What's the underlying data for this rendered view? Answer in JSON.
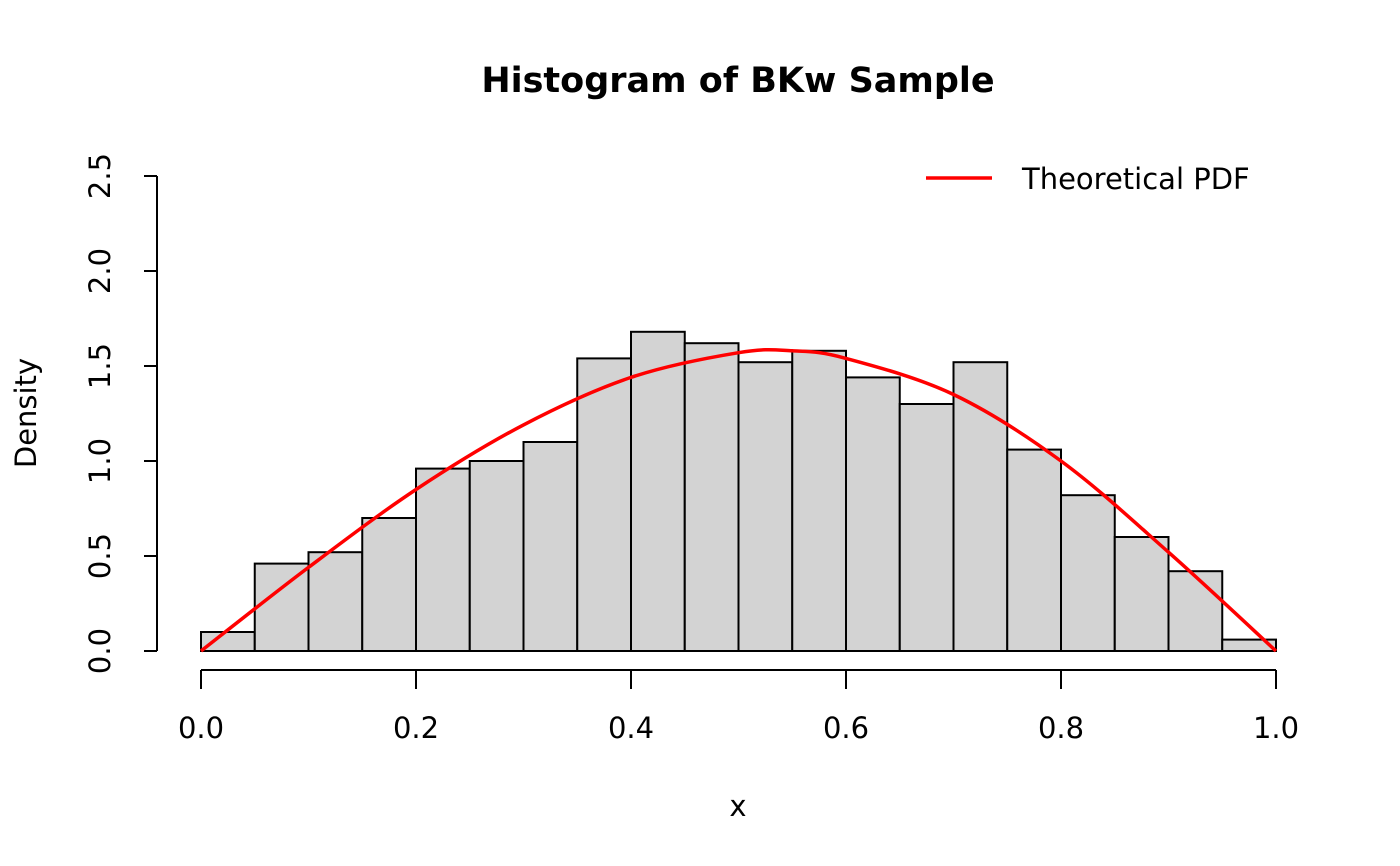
{
  "chart_data": {
    "type": "bar",
    "title": "Histogram of BKw Sample",
    "xlabel": "x",
    "ylabel": "Density",
    "xlim": [
      0,
      1
    ],
    "ylim": [
      0,
      2.5
    ],
    "x_ticks": [
      "0.0",
      "0.2",
      "0.4",
      "0.6",
      "0.8",
      "1.0"
    ],
    "y_ticks": [
      "0.0",
      "0.5",
      "1.0",
      "1.5",
      "2.0",
      "2.5"
    ],
    "bins": [
      {
        "start": 0.0,
        "end": 0.05,
        "density": 0.1
      },
      {
        "start": 0.05,
        "end": 0.1,
        "density": 0.46
      },
      {
        "start": 0.1,
        "end": 0.15,
        "density": 0.52
      },
      {
        "start": 0.15,
        "end": 0.2,
        "density": 0.7
      },
      {
        "start": 0.2,
        "end": 0.25,
        "density": 0.96
      },
      {
        "start": 0.25,
        "end": 0.3,
        "density": 1.0
      },
      {
        "start": 0.3,
        "end": 0.35,
        "density": 1.1
      },
      {
        "start": 0.35,
        "end": 0.4,
        "density": 1.54
      },
      {
        "start": 0.4,
        "end": 0.45,
        "density": 1.68
      },
      {
        "start": 0.45,
        "end": 0.5,
        "density": 1.62
      },
      {
        "start": 0.5,
        "end": 0.55,
        "density": 1.52
      },
      {
        "start": 0.55,
        "end": 0.6,
        "density": 1.58
      },
      {
        "start": 0.6,
        "end": 0.65,
        "density": 1.44
      },
      {
        "start": 0.65,
        "end": 0.7,
        "density": 1.3
      },
      {
        "start": 0.7,
        "end": 0.75,
        "density": 1.52
      },
      {
        "start": 0.75,
        "end": 0.8,
        "density": 1.06
      },
      {
        "start": 0.8,
        "end": 0.85,
        "density": 0.82
      },
      {
        "start": 0.85,
        "end": 0.9,
        "density": 0.6
      },
      {
        "start": 0.9,
        "end": 0.95,
        "density": 0.42
      },
      {
        "start": 0.95,
        "end": 1.0,
        "density": 0.06
      }
    ],
    "series": [
      {
        "name": "Theoretical PDF",
        "type": "line",
        "color": "#ff0000",
        "x": [
          0.0,
          0.1,
          0.2,
          0.3,
          0.4,
          0.5,
          0.55,
          0.6,
          0.7,
          0.8,
          0.9,
          1.0
        ],
        "y": [
          0.0,
          0.44,
          0.85,
          1.19,
          1.44,
          1.57,
          1.58,
          1.54,
          1.35,
          1.0,
          0.52,
          0.0
        ]
      }
    ],
    "bar_fill": "#d3d3d3",
    "legend": {
      "position": "top-right",
      "entries": [
        "Theoretical PDF"
      ]
    },
    "grid": false
  }
}
